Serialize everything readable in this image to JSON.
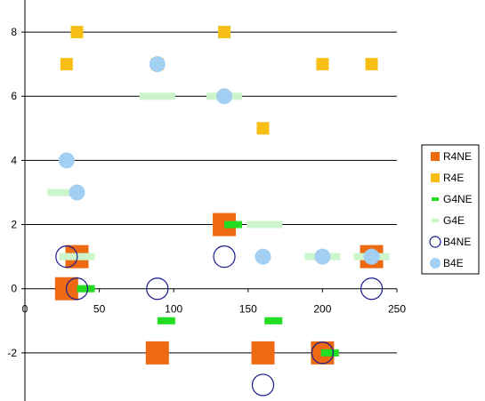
{
  "chart_data": {
    "type": "scatter",
    "xlim": [
      0,
      250
    ],
    "ylim": [
      -3.5,
      9
    ],
    "x_ticks": [
      0,
      50,
      100,
      150,
      200,
      250
    ],
    "y_ticks": [
      -2,
      0,
      2,
      4,
      6,
      8
    ],
    "x_tick_labels": [
      "0",
      "50",
      "100",
      "150",
      "200",
      "250"
    ],
    "y_tick_labels": [
      "-2",
      "0",
      "2",
      "4",
      "6",
      "8"
    ],
    "grid": "horizontal major lines",
    "legend_position": "right",
    "series": [
      {
        "name": "R4NE",
        "marker": "big-square",
        "color": "#ED6A12",
        "points": [
          [
            35,
            1
          ],
          [
            28,
            0
          ],
          [
            89,
            -2
          ],
          [
            134,
            2
          ],
          [
            160,
            -2
          ],
          [
            200,
            -2
          ],
          [
            233,
            1
          ]
        ]
      },
      {
        "name": "R4E",
        "marker": "square",
        "color": "#F7BE16",
        "points": [
          [
            35,
            8
          ],
          [
            28,
            7
          ],
          [
            89,
            7
          ],
          [
            134,
            8
          ],
          [
            160,
            5
          ],
          [
            200,
            7
          ],
          [
            233,
            7
          ]
        ]
      },
      {
        "name": "G4NE",
        "marker": "dash",
        "color": "#22DD22",
        "points": [
          [
            41,
            0
          ],
          [
            95,
            -1
          ],
          [
            140,
            2
          ],
          [
            167,
            -1
          ],
          [
            205,
            -2
          ]
        ]
      },
      {
        "name": "G4E",
        "marker": "wide-dash",
        "color": "#CCF5CC",
        "points": [
          [
            27,
            3
          ],
          [
            35,
            1
          ],
          [
            89,
            6
          ],
          [
            134,
            6
          ],
          [
            161,
            2
          ],
          [
            200,
            1
          ],
          [
            233,
            1
          ]
        ]
      },
      {
        "name": "B4NE",
        "marker": "open-circle",
        "color": "#1A1A8C",
        "points": [
          [
            28,
            1
          ],
          [
            35,
            0
          ],
          [
            89,
            0
          ],
          [
            134,
            1
          ],
          [
            160,
            -3
          ],
          [
            200,
            -2
          ],
          [
            233,
            0
          ]
        ]
      },
      {
        "name": "B4E",
        "marker": "circle",
        "color": "#A3CFF2",
        "points": [
          [
            28,
            4
          ],
          [
            35,
            3
          ],
          [
            89,
            7
          ],
          [
            134,
            6
          ],
          [
            160,
            1
          ],
          [
            200,
            1
          ],
          [
            233,
            1
          ]
        ]
      }
    ]
  }
}
